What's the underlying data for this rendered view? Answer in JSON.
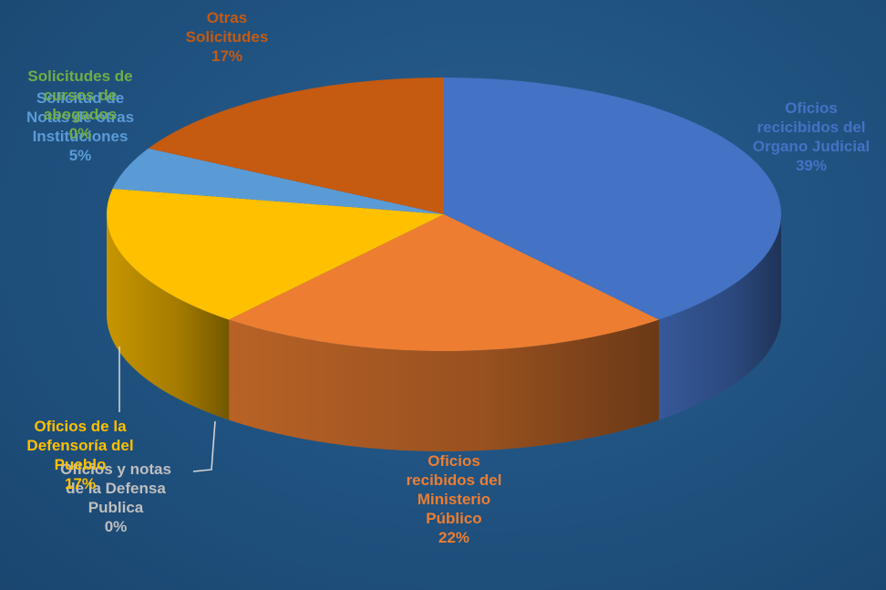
{
  "chart_data": {
    "type": "pie",
    "title": "",
    "slices": [
      {
        "label_lines": [
          "Oficios",
          "recicibidos del",
          "Organo Judicial"
        ],
        "value": 39,
        "pct": "39%",
        "color": "#4472c4"
      },
      {
        "label_lines": [
          "Oficios",
          "recibidos del",
          "Ministerio",
          "Público"
        ],
        "value": 22,
        "pct": "22%",
        "color": "#ed7d31"
      },
      {
        "label_lines": [
          "Oficios y notas",
          "de la Defensa",
          "Publica"
        ],
        "value": 0,
        "pct": "0%",
        "color": "#a5a5a5"
      },
      {
        "label_lines": [
          "Oficios de la",
          "Defensoría del",
          "Pueblo"
        ],
        "value": 17,
        "pct": "17%",
        "color": "#ffc000"
      },
      {
        "label_lines": [
          "Solicitud de",
          "Notas de otras",
          "Instituciones"
        ],
        "value": 5,
        "pct": "5%",
        "color": "#5b9bd5"
      },
      {
        "label_lines": [
          "Solicitudes de",
          "cursos de",
          "abogados"
        ],
        "value": 0,
        "pct": "0%",
        "color": "#70ad47"
      },
      {
        "label_lines": [
          "Otras",
          "Solicitudes"
        ],
        "value": 17,
        "pct": "17%",
        "color": "#c55a11"
      }
    ]
  }
}
